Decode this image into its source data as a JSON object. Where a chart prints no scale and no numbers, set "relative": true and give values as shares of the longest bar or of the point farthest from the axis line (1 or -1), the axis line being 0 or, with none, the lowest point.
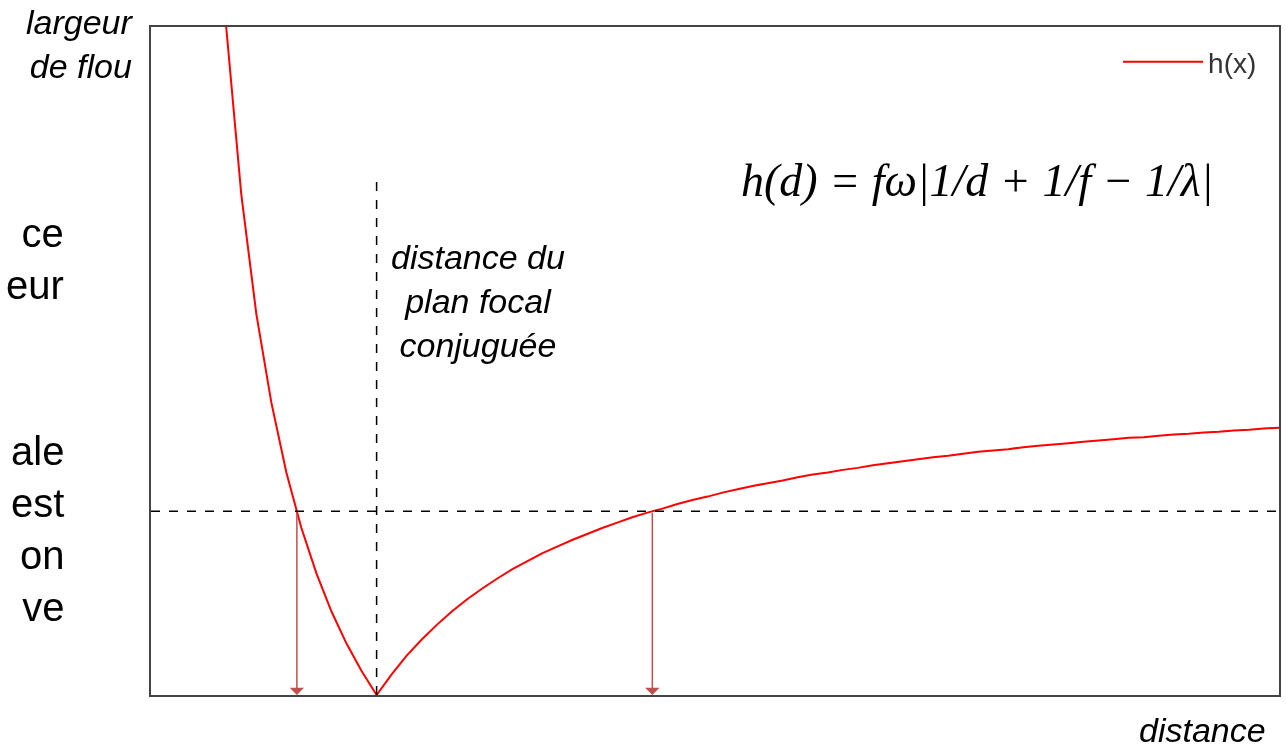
{
  "chart_data": {
    "type": "line",
    "relative": true,
    "tick_labels": false,
    "legend": "top right",
    "xlabel": "distance",
    "ylabel": "largeur de flou",
    "categories": [
      null,
      null,
      null,
      null,
      null,
      null,
      null,
      null,
      null,
      null,
      null,
      null,
      null,
      null,
      null,
      null,
      null,
      null,
      null,
      null,
      null,
      null,
      null,
      null,
      null,
      null,
      null,
      null,
      null,
      null,
      null,
      null,
      null,
      null,
      null,
      null,
      null,
      null,
      null,
      null,
      null,
      null,
      null,
      null,
      null,
      null,
      null,
      null,
      null,
      null,
      null,
      null,
      null,
      null,
      null,
      null,
      null,
      null,
      null,
      null,
      null,
      null,
      null,
      null,
      null,
      null,
      null,
      null,
      null,
      null,
      null,
      null,
      null,
      null,
      null,
      null
    ],
    "series": [
      {
        "name": "h(x)",
        "color": "#ff0000",
        "values": [
          null,
          null,
          null,
          null,
          null,
          1.0,
          0.75,
          0.571,
          0.438,
          0.333,
          0.25,
          0.182,
          0.125,
          0.077,
          0.036,
          0,
          0.031,
          0.059,
          0.083,
          0.105,
          0.125,
          0.143,
          0.159,
          0.174,
          0.188,
          0.2,
          0.212,
          0.222,
          0.232,
          0.241,
          0.25,
          0.258,
          0.266,
          0.273,
          0.279,
          0.286,
          0.292,
          0.297,
          0.303,
          0.308,
          0.313,
          0.317,
          0.321,
          0.326,
          0.33,
          0.333,
          0.337,
          0.34,
          0.344,
          0.347,
          0.35,
          0.353,
          0.356,
          0.358,
          0.361,
          0.364,
          0.366,
          0.368,
          0.371,
          0.373,
          0.375,
          0.377,
          0.379,
          0.381,
          0.383,
          0.385,
          0.386,
          0.388,
          0.39,
          0.391,
          0.393,
          0.394,
          0.396,
          0.397,
          0.399,
          0.4
        ]
      }
    ],
    "ref_lines": [
      {
        "axis": "y",
        "value": 0.275,
        "color": "#000000",
        "line_style": "dashed"
      }
    ],
    "annotations": [
      "h(d) = fω|1/d + 1/f − 1/λ|",
      "distance du plan focal conjuguée",
      "ce\neur",
      "ale\nest\non\nve"
    ]
  }
}
